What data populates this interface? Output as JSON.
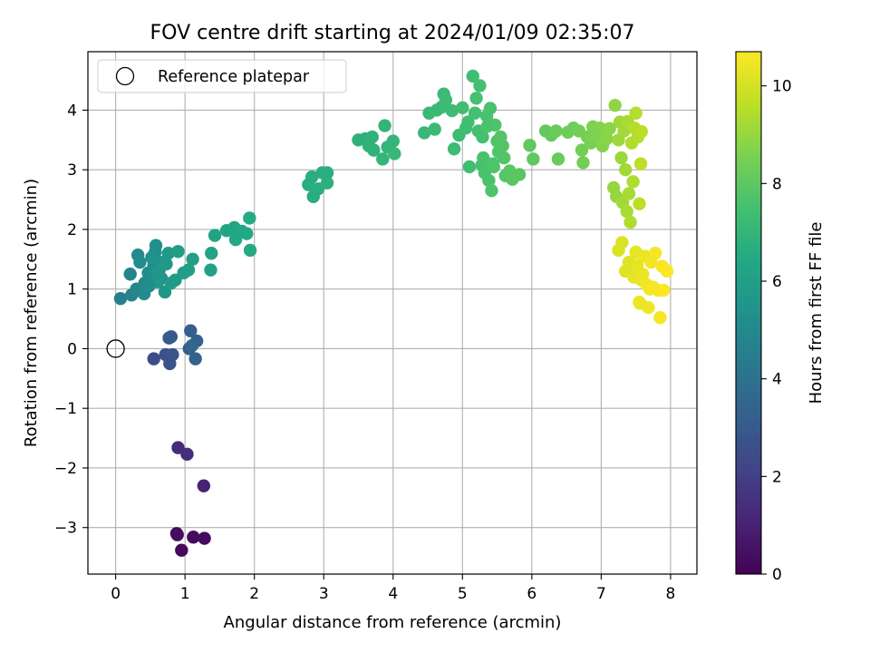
{
  "chart_data": {
    "type": "scatter",
    "title": "FOV centre drift starting at 2024/01/09 02:35:07",
    "xlabel": "Angular distance from reference (arcmin)",
    "ylabel": "Rotation from reference (arcmin)",
    "xlim": [
      -0.4,
      8.38
    ],
    "ylim": [
      -3.78,
      4.98
    ],
    "xticks": [
      0,
      1,
      2,
      3,
      4,
      5,
      6,
      7,
      8
    ],
    "xtick_labels": [
      "0",
      "1",
      "2",
      "3",
      "4",
      "5",
      "6",
      "7",
      "8"
    ],
    "yticks": [
      -3,
      -2,
      -1,
      0,
      1,
      2,
      3,
      4
    ],
    "ytick_labels": [
      "−3",
      "−2",
      "−1",
      "0",
      "1",
      "2",
      "3",
      "4"
    ],
    "grid": true,
    "legend": {
      "position": "top-left",
      "entries": [
        "Reference platepar"
      ]
    },
    "colorbar": {
      "label": "Hours from first FF file",
      "colormap": "viridis",
      "range": [
        0,
        10.7
      ],
      "ticks": [
        0,
        2,
        4,
        6,
        8,
        10
      ],
      "tick_labels": [
        "0",
        "2",
        "4",
        "6",
        "8",
        "10"
      ]
    },
    "reference_point": {
      "x": 0,
      "y": 0,
      "label": "Reference platepar"
    },
    "points": [
      {
        "x": 0.88,
        "y": -3.1,
        "c": 0.1
      },
      {
        "x": 0.95,
        "y": -3.38,
        "c": 0.2
      },
      {
        "x": 1.12,
        "y": -3.16,
        "c": 0.3
      },
      {
        "x": 1.28,
        "y": -3.18,
        "c": 0.35
      },
      {
        "x": 0.89,
        "y": -3.12,
        "c": 0.4
      },
      {
        "x": 1.27,
        "y": -2.3,
        "c": 1.0
      },
      {
        "x": 0.9,
        "y": -1.66,
        "c": 1.3
      },
      {
        "x": 1.03,
        "y": -1.77,
        "c": 1.4
      },
      {
        "x": 0.55,
        "y": -0.17,
        "c": 2.5
      },
      {
        "x": 0.72,
        "y": -0.1,
        "c": 2.6
      },
      {
        "x": 0.78,
        "y": -0.25,
        "c": 2.7
      },
      {
        "x": 0.82,
        "y": -0.1,
        "c": 2.8
      },
      {
        "x": 0.77,
        "y": 0.18,
        "c": 2.9
      },
      {
        "x": 0.8,
        "y": 0.2,
        "c": 3.0
      },
      {
        "x": 1.06,
        "y": 0.0,
        "c": 3.1
      },
      {
        "x": 1.08,
        "y": 0.3,
        "c": 3.2
      },
      {
        "x": 1.17,
        "y": 0.13,
        "c": 3.3
      },
      {
        "x": 1.15,
        "y": -0.17,
        "c": 3.4
      },
      {
        "x": 1.1,
        "y": 0.05,
        "c": 3.5
      },
      {
        "x": 0.07,
        "y": 0.84,
        "c": 4.6
      },
      {
        "x": 0.23,
        "y": 0.9,
        "c": 4.7
      },
      {
        "x": 0.21,
        "y": 1.25,
        "c": 4.8
      },
      {
        "x": 0.3,
        "y": 1.0,
        "c": 4.9
      },
      {
        "x": 0.32,
        "y": 1.57,
        "c": 5.0
      },
      {
        "x": 0.42,
        "y": 1.1,
        "c": 5.0
      },
      {
        "x": 0.41,
        "y": 0.92,
        "c": 5.1
      },
      {
        "x": 0.47,
        "y": 1.27,
        "c": 5.1
      },
      {
        "x": 0.51,
        "y": 1.17,
        "c": 5.2
      },
      {
        "x": 0.55,
        "y": 1.4,
        "c": 5.2
      },
      {
        "x": 0.57,
        "y": 1.62,
        "c": 5.3
      },
      {
        "x": 0.58,
        "y": 1.73,
        "c": 5.3
      },
      {
        "x": 0.52,
        "y": 1.53,
        "c": 5.4
      },
      {
        "x": 0.63,
        "y": 1.33,
        "c": 5.4
      },
      {
        "x": 0.66,
        "y": 1.18,
        "c": 5.5
      },
      {
        "x": 0.68,
        "y": 1.45,
        "c": 5.5
      },
      {
        "x": 0.61,
        "y": 1.12,
        "c": 5.6
      },
      {
        "x": 0.71,
        "y": 0.95,
        "c": 5.6
      },
      {
        "x": 0.73,
        "y": 1.42,
        "c": 5.7
      },
      {
        "x": 0.76,
        "y": 1.6,
        "c": 5.7
      },
      {
        "x": 0.8,
        "y": 1.1,
        "c": 5.8
      },
      {
        "x": 0.86,
        "y": 1.15,
        "c": 5.8
      },
      {
        "x": 0.9,
        "y": 1.63,
        "c": 5.9
      },
      {
        "x": 0.98,
        "y": 1.27,
        "c": 5.9
      },
      {
        "x": 1.05,
        "y": 1.32,
        "c": 6.0
      },
      {
        "x": 1.11,
        "y": 1.5,
        "c": 6.0
      },
      {
        "x": 0.6,
        "y": 1.28,
        "c": 5.6
      },
      {
        "x": 0.35,
        "y": 1.45,
        "c": 5.1
      },
      {
        "x": 0.48,
        "y": 1.05,
        "c": 5.2
      },
      {
        "x": 1.37,
        "y": 1.32,
        "c": 6.1
      },
      {
        "x": 1.38,
        "y": 1.6,
        "c": 6.2
      },
      {
        "x": 1.43,
        "y": 1.9,
        "c": 6.2
      },
      {
        "x": 1.6,
        "y": 1.98,
        "c": 6.3
      },
      {
        "x": 1.71,
        "y": 2.03,
        "c": 6.3
      },
      {
        "x": 1.73,
        "y": 1.83,
        "c": 6.4
      },
      {
        "x": 1.82,
        "y": 1.97,
        "c": 6.4
      },
      {
        "x": 1.89,
        "y": 1.93,
        "c": 6.4
      },
      {
        "x": 1.93,
        "y": 2.19,
        "c": 6.5
      },
      {
        "x": 1.94,
        "y": 1.65,
        "c": 6.5
      },
      {
        "x": 2.78,
        "y": 2.75,
        "c": 6.6
      },
      {
        "x": 2.83,
        "y": 2.88,
        "c": 6.6
      },
      {
        "x": 2.85,
        "y": 2.55,
        "c": 6.6
      },
      {
        "x": 2.92,
        "y": 2.68,
        "c": 6.7
      },
      {
        "x": 2.98,
        "y": 2.95,
        "c": 6.7
      },
      {
        "x": 3.05,
        "y": 2.95,
        "c": 6.7
      },
      {
        "x": 3.05,
        "y": 2.78,
        "c": 6.8
      },
      {
        "x": 3.5,
        "y": 3.5,
        "c": 6.8
      },
      {
        "x": 3.6,
        "y": 3.52,
        "c": 6.8
      },
      {
        "x": 3.65,
        "y": 3.4,
        "c": 6.9
      },
      {
        "x": 3.7,
        "y": 3.55,
        "c": 6.9
      },
      {
        "x": 3.72,
        "y": 3.33,
        "c": 6.9
      },
      {
        "x": 3.85,
        "y": 3.18,
        "c": 7.0
      },
      {
        "x": 3.88,
        "y": 3.74,
        "c": 7.0
      },
      {
        "x": 3.92,
        "y": 3.38,
        "c": 7.0
      },
      {
        "x": 4.0,
        "y": 3.48,
        "c": 7.0
      },
      {
        "x": 4.02,
        "y": 3.27,
        "c": 7.1
      },
      {
        "x": 4.45,
        "y": 3.62,
        "c": 7.1
      },
      {
        "x": 4.52,
        "y": 3.95,
        "c": 7.1
      },
      {
        "x": 4.6,
        "y": 3.68,
        "c": 7.2
      },
      {
        "x": 4.63,
        "y": 4.0,
        "c": 7.2
      },
      {
        "x": 4.7,
        "y": 4.05,
        "c": 7.2
      },
      {
        "x": 4.73,
        "y": 4.27,
        "c": 7.2
      },
      {
        "x": 4.76,
        "y": 4.17,
        "c": 7.3
      },
      {
        "x": 4.85,
        "y": 3.99,
        "c": 7.3
      },
      {
        "x": 4.88,
        "y": 3.35,
        "c": 7.3
      },
      {
        "x": 4.95,
        "y": 3.58,
        "c": 7.3
      },
      {
        "x": 5.0,
        "y": 4.04,
        "c": 7.4
      },
      {
        "x": 5.05,
        "y": 3.7,
        "c": 7.4
      },
      {
        "x": 5.08,
        "y": 3.8,
        "c": 7.4
      },
      {
        "x": 5.1,
        "y": 3.05,
        "c": 7.4
      },
      {
        "x": 5.15,
        "y": 4.57,
        "c": 7.4
      },
      {
        "x": 5.18,
        "y": 3.95,
        "c": 7.5
      },
      {
        "x": 5.2,
        "y": 4.2,
        "c": 7.5
      },
      {
        "x": 5.23,
        "y": 3.65,
        "c": 7.5
      },
      {
        "x": 5.25,
        "y": 4.41,
        "c": 7.5
      },
      {
        "x": 5.28,
        "y": 3.08,
        "c": 7.5
      },
      {
        "x": 5.3,
        "y": 3.2,
        "c": 7.6
      },
      {
        "x": 5.32,
        "y": 2.95,
        "c": 7.6
      },
      {
        "x": 5.35,
        "y": 3.9,
        "c": 7.6
      },
      {
        "x": 5.38,
        "y": 2.82,
        "c": 7.6
      },
      {
        "x": 5.4,
        "y": 4.03,
        "c": 7.6
      },
      {
        "x": 5.42,
        "y": 2.65,
        "c": 7.7
      },
      {
        "x": 5.45,
        "y": 3.05,
        "c": 7.7
      },
      {
        "x": 5.47,
        "y": 3.75,
        "c": 7.7
      },
      {
        "x": 5.5,
        "y": 3.48,
        "c": 7.7
      },
      {
        "x": 5.52,
        "y": 3.3,
        "c": 7.7
      },
      {
        "x": 5.55,
        "y": 3.55,
        "c": 7.8
      },
      {
        "x": 5.58,
        "y": 3.4,
        "c": 7.8
      },
      {
        "x": 5.6,
        "y": 3.2,
        "c": 7.8
      },
      {
        "x": 5.62,
        "y": 2.9,
        "c": 7.8
      },
      {
        "x": 5.68,
        "y": 2.98,
        "c": 7.9
      },
      {
        "x": 5.72,
        "y": 2.84,
        "c": 7.9
      },
      {
        "x": 5.82,
        "y": 2.92,
        "c": 7.9
      },
      {
        "x": 5.36,
        "y": 3.73,
        "c": 7.6
      },
      {
        "x": 5.44,
        "y": 3.1,
        "c": 7.7
      },
      {
        "x": 5.29,
        "y": 3.55,
        "c": 7.5
      },
      {
        "x": 5.97,
        "y": 3.41,
        "c": 8.0
      },
      {
        "x": 6.02,
        "y": 3.18,
        "c": 8.0
      },
      {
        "x": 6.2,
        "y": 3.65,
        "c": 8.1
      },
      {
        "x": 6.28,
        "y": 3.58,
        "c": 8.1
      },
      {
        "x": 6.35,
        "y": 3.65,
        "c": 8.2
      },
      {
        "x": 6.38,
        "y": 3.18,
        "c": 8.2
      },
      {
        "x": 6.52,
        "y": 3.63,
        "c": 8.3
      },
      {
        "x": 6.6,
        "y": 3.7,
        "c": 8.3
      },
      {
        "x": 6.68,
        "y": 3.65,
        "c": 8.4
      },
      {
        "x": 6.72,
        "y": 3.33,
        "c": 8.4
      },
      {
        "x": 6.74,
        "y": 3.12,
        "c": 8.4
      },
      {
        "x": 6.8,
        "y": 3.55,
        "c": 8.5
      },
      {
        "x": 6.85,
        "y": 3.45,
        "c": 8.5
      },
      {
        "x": 6.88,
        "y": 3.72,
        "c": 8.6
      },
      {
        "x": 6.93,
        "y": 3.56,
        "c": 8.6
      },
      {
        "x": 6.98,
        "y": 3.7,
        "c": 8.7
      },
      {
        "x": 7.02,
        "y": 3.4,
        "c": 8.7
      },
      {
        "x": 7.08,
        "y": 3.52,
        "c": 8.8
      },
      {
        "x": 7.12,
        "y": 3.69,
        "c": 8.8
      },
      {
        "x": 7.2,
        "y": 4.08,
        "c": 8.9
      },
      {
        "x": 7.18,
        "y": 2.7,
        "c": 9.0
      },
      {
        "x": 7.22,
        "y": 2.55,
        "c": 9.0
      },
      {
        "x": 7.25,
        "y": 3.5,
        "c": 9.1
      },
      {
        "x": 7.27,
        "y": 3.8,
        "c": 9.1
      },
      {
        "x": 7.29,
        "y": 3.2,
        "c": 9.1
      },
      {
        "x": 7.31,
        "y": 2.45,
        "c": 9.2
      },
      {
        "x": 7.33,
        "y": 3.65,
        "c": 9.2
      },
      {
        "x": 7.35,
        "y": 3.0,
        "c": 9.2
      },
      {
        "x": 7.37,
        "y": 2.3,
        "c": 9.3
      },
      {
        "x": 7.38,
        "y": 3.81,
        "c": 9.3
      },
      {
        "x": 7.4,
        "y": 2.6,
        "c": 9.3
      },
      {
        "x": 7.42,
        "y": 2.12,
        "c": 9.4
      },
      {
        "x": 7.44,
        "y": 3.45,
        "c": 9.4
      },
      {
        "x": 7.46,
        "y": 2.8,
        "c": 9.4
      },
      {
        "x": 7.48,
        "y": 3.7,
        "c": 9.5
      },
      {
        "x": 7.5,
        "y": 3.95,
        "c": 9.5
      },
      {
        "x": 7.53,
        "y": 3.55,
        "c": 9.5
      },
      {
        "x": 7.55,
        "y": 2.43,
        "c": 9.6
      },
      {
        "x": 7.57,
        "y": 3.1,
        "c": 9.6
      },
      {
        "x": 7.58,
        "y": 3.64,
        "c": 9.6
      },
      {
        "x": 7.25,
        "y": 1.65,
        "c": 10.1
      },
      {
        "x": 7.3,
        "y": 1.78,
        "c": 10.1
      },
      {
        "x": 7.35,
        "y": 1.3,
        "c": 10.2
      },
      {
        "x": 7.4,
        "y": 1.45,
        "c": 10.2
      },
      {
        "x": 7.43,
        "y": 1.35,
        "c": 10.2
      },
      {
        "x": 7.47,
        "y": 1.2,
        "c": 10.3
      },
      {
        "x": 7.5,
        "y": 1.62,
        "c": 10.3
      },
      {
        "x": 7.52,
        "y": 1.4,
        "c": 10.3
      },
      {
        "x": 7.55,
        "y": 0.78,
        "c": 10.4
      },
      {
        "x": 7.58,
        "y": 1.15,
        "c": 10.4
      },
      {
        "x": 7.6,
        "y": 1.25,
        "c": 10.4
      },
      {
        "x": 7.63,
        "y": 1.55,
        "c": 10.4
      },
      {
        "x": 7.65,
        "y": 1.08,
        "c": 10.5
      },
      {
        "x": 7.68,
        "y": 0.69,
        "c": 10.5
      },
      {
        "x": 7.7,
        "y": 1.0,
        "c": 10.5
      },
      {
        "x": 7.72,
        "y": 1.45,
        "c": 10.5
      },
      {
        "x": 7.75,
        "y": 1.03,
        "c": 10.6
      },
      {
        "x": 7.78,
        "y": 1.6,
        "c": 10.6
      },
      {
        "x": 7.82,
        "y": 0.98,
        "c": 10.6
      },
      {
        "x": 7.85,
        "y": 0.52,
        "c": 10.6
      },
      {
        "x": 7.88,
        "y": 1.38,
        "c": 10.6
      },
      {
        "x": 7.9,
        "y": 0.98,
        "c": 10.7
      },
      {
        "x": 7.95,
        "y": 1.3,
        "c": 10.7
      },
      {
        "x": 7.56,
        "y": 0.76,
        "c": 10.4
      }
    ]
  }
}
